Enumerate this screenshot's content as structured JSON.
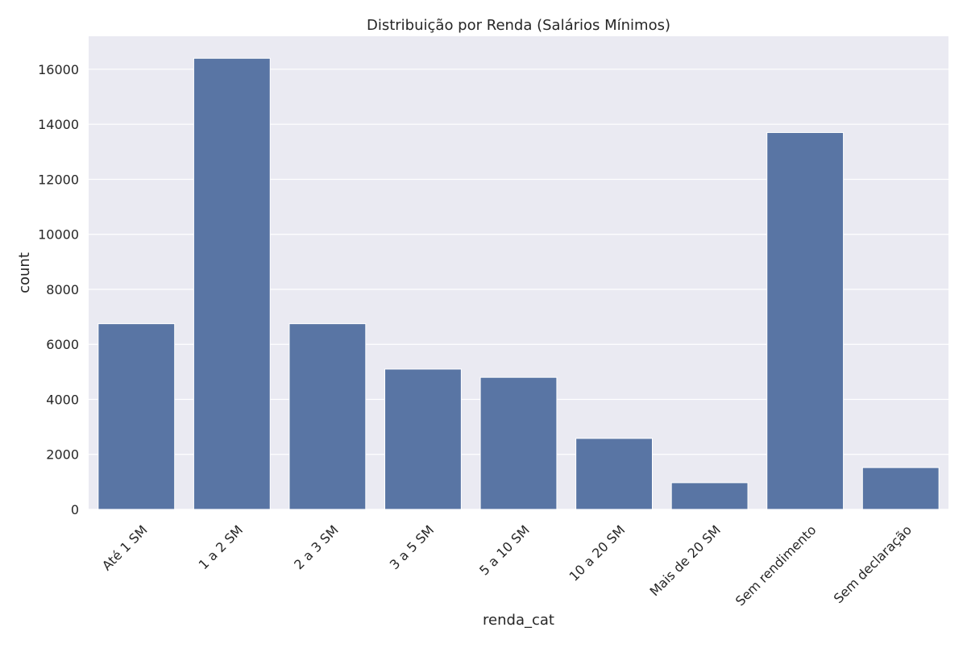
{
  "chart_data": {
    "type": "bar",
    "title": "Distribuição por Renda (Salários Mínimos)",
    "xlabel": "renda_cat",
    "ylabel": "count",
    "categories": [
      "Até 1 SM",
      "1 a 2 SM",
      "2 a 3 SM",
      "3 a 5 SM",
      "5 a 10 SM",
      "10 a 20 SM",
      "Mais de 20 SM",
      "Sem rendimento",
      "Sem declaração"
    ],
    "values": [
      6750,
      16400,
      6750,
      5100,
      4800,
      2580,
      970,
      13700,
      1520
    ],
    "yticks": [
      0,
      2000,
      4000,
      6000,
      8000,
      10000,
      12000,
      14000,
      16000
    ],
    "ylim": [
      0,
      17200
    ],
    "grid": true,
    "legend": "none",
    "colors": {
      "bar": "#5975a4",
      "plot_background": "#eaeaf2",
      "grid": "#ffffff"
    }
  }
}
